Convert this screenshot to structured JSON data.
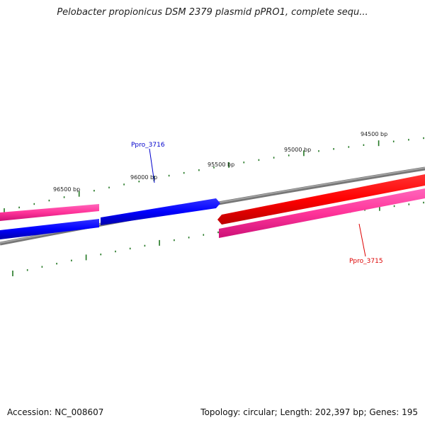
{
  "title": "Pelobacter propionicus DSM 2379 plasmid pPRO1, complete sequ...",
  "footer": {
    "accession": "Accession: NC_008607",
    "summary": "Topology: circular; Length: 202,397 bp; Genes: 195"
  },
  "scale": {
    "tick_labels": [
      "96500 bp",
      "96000 bp",
      "95500 bp",
      "95000 bp",
      "94500 bp"
    ]
  },
  "genes": [
    {
      "label": "Ppro_3716",
      "color": "#0000cc",
      "strand": "forward"
    },
    {
      "label": "Ppro_3715",
      "color": "#dd0000",
      "strand": "reverse"
    }
  ],
  "colors": {
    "forward_cds": "#0000ff",
    "reverse_cds": "#ff0000",
    "feature_band": "#ff3399",
    "backbone": "#888888",
    "tick": "#227722"
  }
}
